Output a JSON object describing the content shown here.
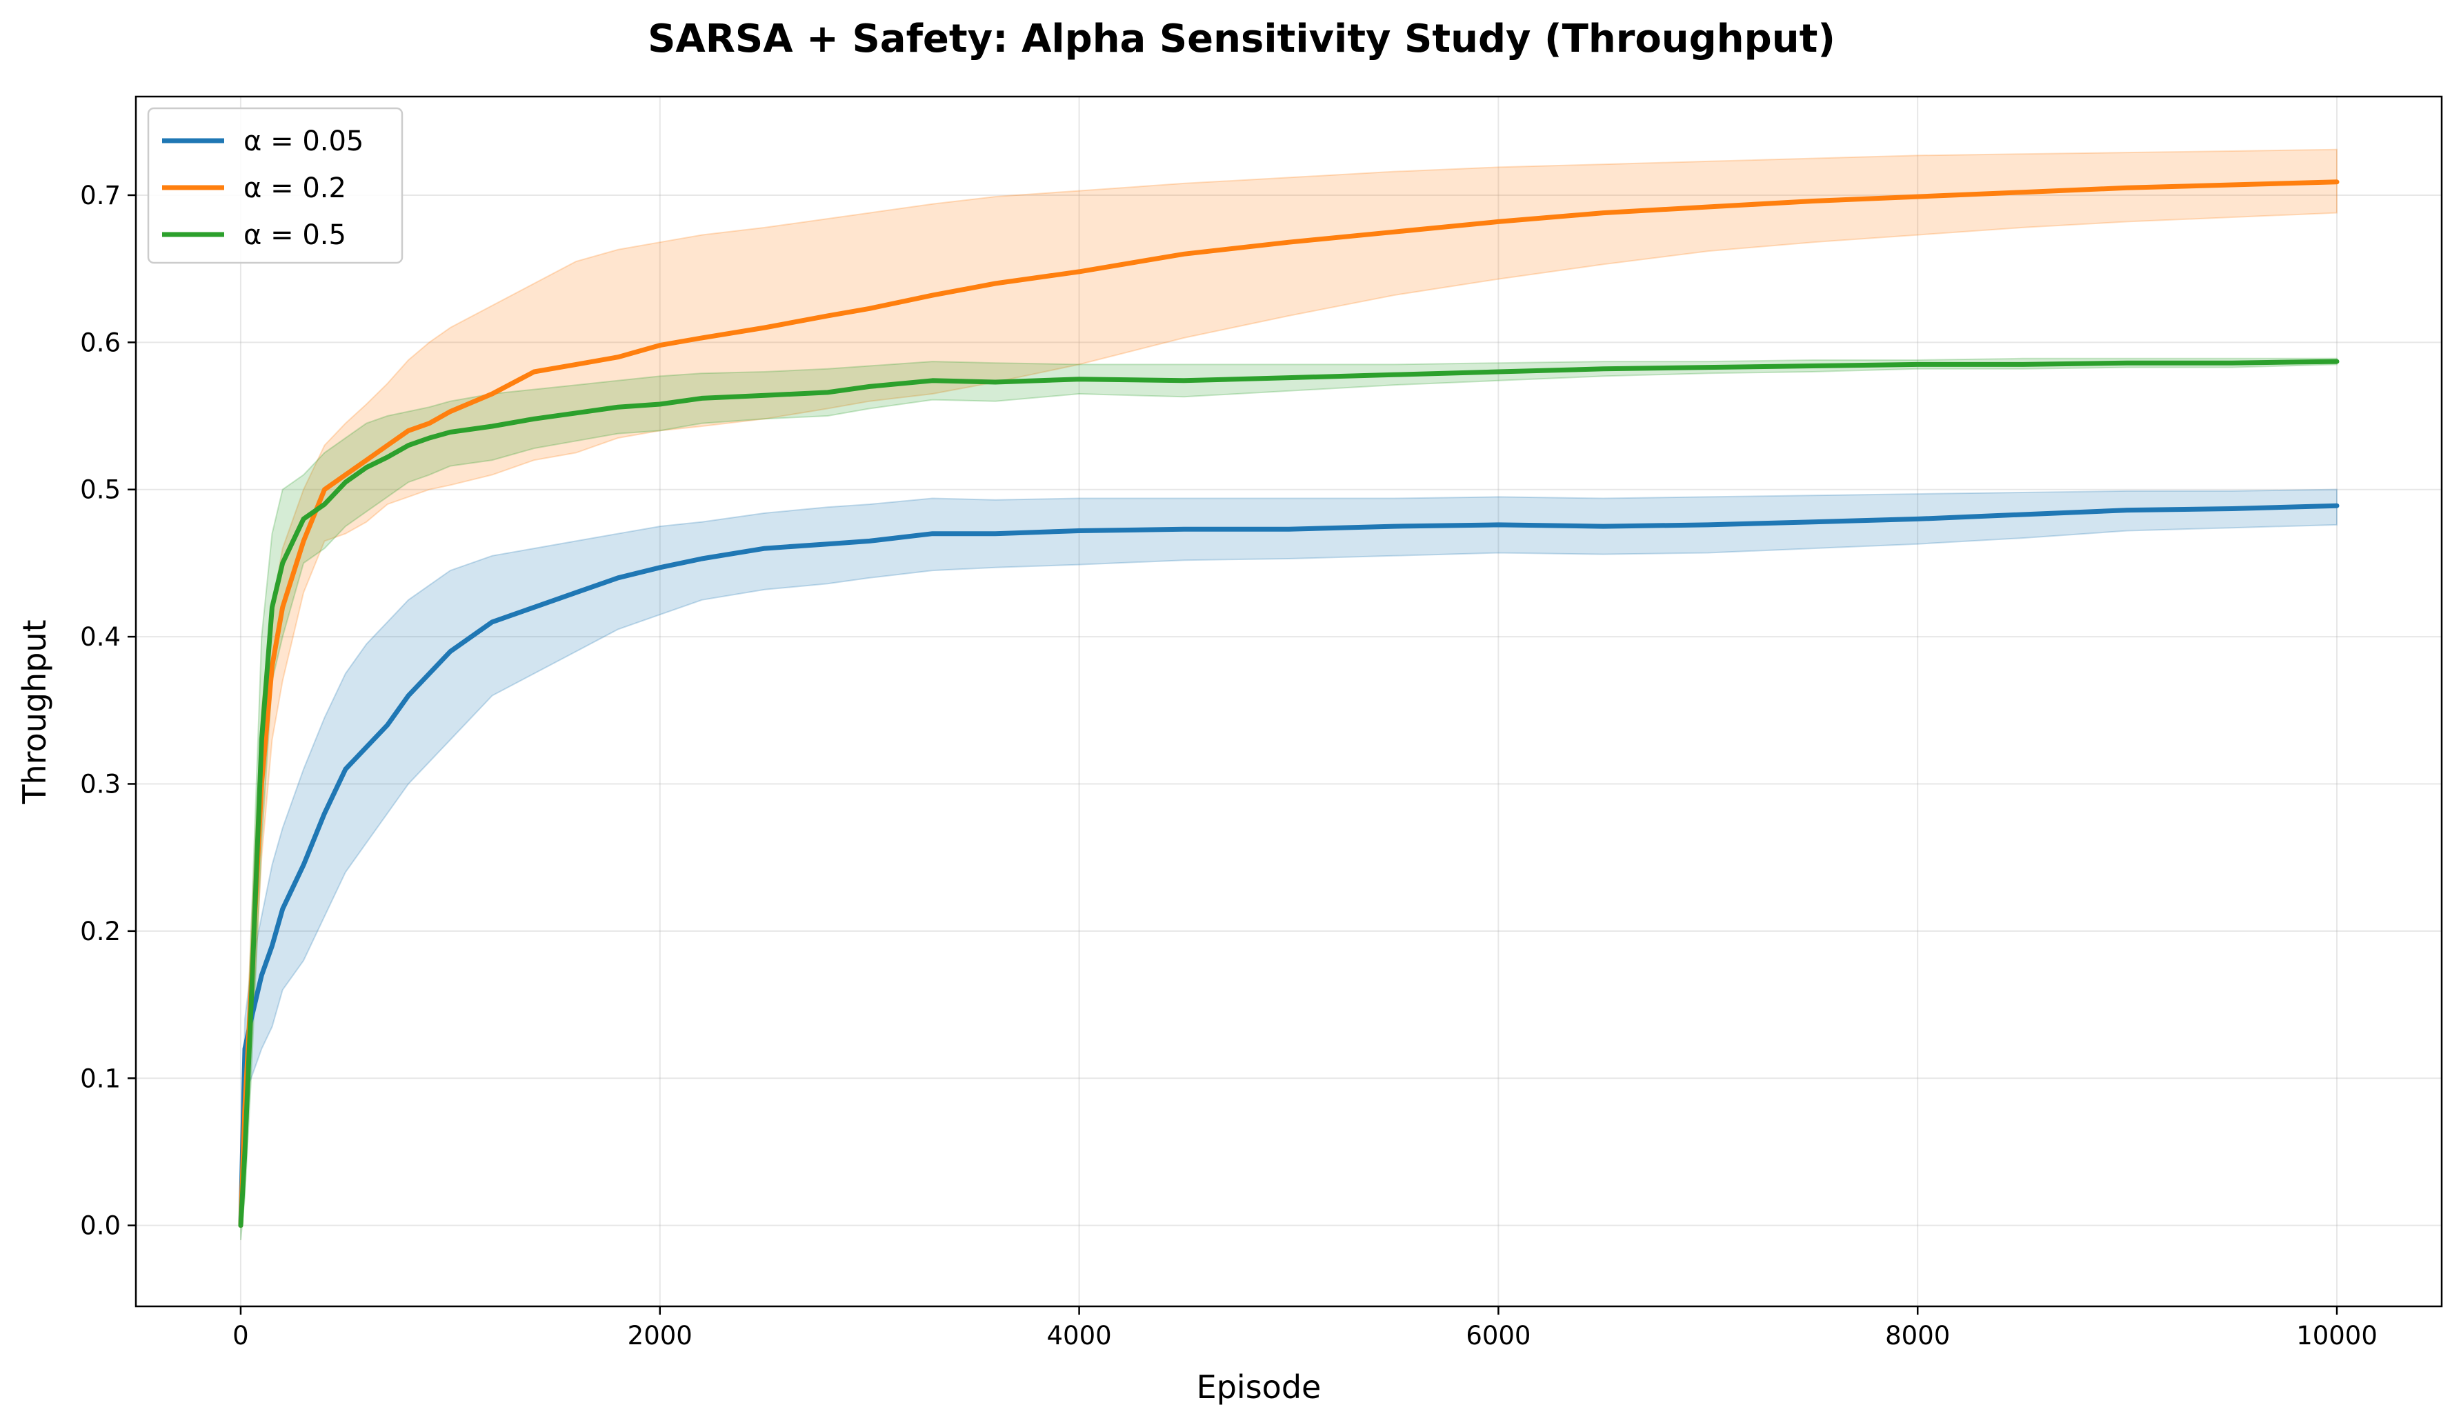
{
  "chart_data": {
    "type": "line",
    "title": "SARSA + Safety: Alpha Sensitivity Study (Throughput)",
    "xlabel": "Episode",
    "ylabel": "Throughput",
    "xlim": [
      -500,
      10500
    ],
    "ylim": [
      -0.055,
      0.767
    ],
    "xticks": [
      0,
      2000,
      4000,
      6000,
      8000,
      10000
    ],
    "xtick_labels": [
      "0",
      "2000",
      "4000",
      "6000",
      "8000",
      "10000"
    ],
    "yticks": [
      0.0,
      0.1,
      0.2,
      0.3,
      0.4,
      0.5,
      0.6,
      0.7
    ],
    "ytick_labels": [
      "0.0",
      "0.1",
      "0.2",
      "0.3",
      "0.4",
      "0.5",
      "0.6",
      "0.7"
    ],
    "grid": true,
    "legend_position": "top-left",
    "series": [
      {
        "name": "α = 0.05",
        "color": "#1f77b4",
        "x": [
          0,
          20,
          50,
          100,
          150,
          200,
          300,
          400,
          500,
          600,
          700,
          800,
          900,
          1000,
          1200,
          1400,
          1600,
          1800,
          2000,
          2200,
          2500,
          2800,
          3000,
          3300,
          3600,
          4000,
          4500,
          5000,
          5500,
          6000,
          6500,
          7000,
          7500,
          8000,
          8500,
          9000,
          9500,
          10000
        ],
        "values": [
          0.0,
          0.12,
          0.14,
          0.17,
          0.19,
          0.215,
          0.245,
          0.28,
          0.31,
          0.325,
          0.34,
          0.36,
          0.375,
          0.39,
          0.41,
          0.42,
          0.43,
          0.44,
          0.447,
          0.453,
          0.46,
          0.463,
          0.465,
          0.47,
          0.47,
          0.472,
          0.473,
          0.473,
          0.475,
          0.476,
          0.475,
          0.476,
          0.478,
          0.48,
          0.483,
          0.486,
          0.487,
          0.489
        ],
        "upper": [
          0.0,
          0.14,
          0.175,
          0.21,
          0.245,
          0.27,
          0.31,
          0.345,
          0.375,
          0.395,
          0.41,
          0.425,
          0.435,
          0.445,
          0.455,
          0.46,
          0.465,
          0.47,
          0.475,
          0.478,
          0.484,
          0.488,
          0.49,
          0.494,
          0.493,
          0.494,
          0.494,
          0.494,
          0.494,
          0.495,
          0.494,
          0.495,
          0.496,
          0.497,
          0.498,
          0.499,
          0.499,
          0.5
        ],
        "lower": [
          0.0,
          0.09,
          0.1,
          0.12,
          0.135,
          0.16,
          0.18,
          0.21,
          0.24,
          0.26,
          0.28,
          0.3,
          0.315,
          0.33,
          0.36,
          0.375,
          0.39,
          0.405,
          0.415,
          0.425,
          0.432,
          0.436,
          0.44,
          0.445,
          0.447,
          0.449,
          0.452,
          0.453,
          0.455,
          0.457,
          0.456,
          0.457,
          0.46,
          0.463,
          0.467,
          0.472,
          0.474,
          0.476
        ]
      },
      {
        "name": "α = 0.2",
        "color": "#ff7f0e",
        "x": [
          0,
          20,
          50,
          100,
          150,
          200,
          300,
          400,
          500,
          600,
          700,
          800,
          900,
          1000,
          1200,
          1400,
          1600,
          1800,
          2000,
          2200,
          2500,
          2800,
          3000,
          3300,
          3600,
          4000,
          4500,
          5000,
          5500,
          6000,
          6500,
          7000,
          7500,
          8000,
          8500,
          9000,
          9500,
          10000
        ],
        "values": [
          0.0,
          0.08,
          0.16,
          0.3,
          0.38,
          0.42,
          0.465,
          0.5,
          0.51,
          0.52,
          0.53,
          0.54,
          0.545,
          0.553,
          0.565,
          0.58,
          0.585,
          0.59,
          0.598,
          0.603,
          0.61,
          0.618,
          0.623,
          0.632,
          0.64,
          0.648,
          0.66,
          0.668,
          0.675,
          0.682,
          0.688,
          0.692,
          0.696,
          0.699,
          0.702,
          0.705,
          0.707,
          0.709
        ],
        "upper": [
          0.0,
          0.1,
          0.2,
          0.35,
          0.42,
          0.46,
          0.5,
          0.53,
          0.545,
          0.558,
          0.572,
          0.588,
          0.6,
          0.61,
          0.625,
          0.64,
          0.655,
          0.663,
          0.668,
          0.673,
          0.678,
          0.684,
          0.688,
          0.694,
          0.699,
          0.703,
          0.708,
          0.712,
          0.716,
          0.719,
          0.721,
          0.723,
          0.725,
          0.727,
          0.728,
          0.729,
          0.73,
          0.731
        ],
        "lower": [
          0.0,
          0.06,
          0.12,
          0.25,
          0.33,
          0.37,
          0.43,
          0.465,
          0.47,
          0.478,
          0.49,
          0.495,
          0.5,
          0.503,
          0.51,
          0.52,
          0.525,
          0.535,
          0.54,
          0.543,
          0.548,
          0.555,
          0.56,
          0.565,
          0.573,
          0.585,
          0.603,
          0.618,
          0.632,
          0.643,
          0.653,
          0.662,
          0.668,
          0.673,
          0.678,
          0.682,
          0.685,
          0.688
        ]
      },
      {
        "name": "α = 0.5",
        "color": "#2ca02c",
        "x": [
          0,
          20,
          50,
          100,
          150,
          200,
          300,
          400,
          500,
          600,
          700,
          800,
          900,
          1000,
          1200,
          1400,
          1600,
          1800,
          2000,
          2200,
          2500,
          2800,
          3000,
          3300,
          3600,
          4000,
          4500,
          5000,
          5500,
          6000,
          6500,
          7000,
          7500,
          8000,
          8500,
          9000,
          9500,
          10000
        ],
        "values": [
          0.0,
          0.05,
          0.15,
          0.33,
          0.42,
          0.45,
          0.48,
          0.49,
          0.505,
          0.515,
          0.522,
          0.53,
          0.535,
          0.539,
          0.543,
          0.548,
          0.552,
          0.556,
          0.558,
          0.562,
          0.564,
          0.566,
          0.57,
          0.574,
          0.573,
          0.575,
          0.574,
          0.576,
          0.578,
          0.58,
          0.582,
          0.583,
          0.584,
          0.585,
          0.585,
          0.586,
          0.586,
          0.587
        ],
        "upper": [
          0.01,
          0.08,
          0.2,
          0.4,
          0.47,
          0.5,
          0.51,
          0.525,
          0.535,
          0.545,
          0.55,
          0.553,
          0.556,
          0.56,
          0.565,
          0.568,
          0.571,
          0.574,
          0.577,
          0.579,
          0.58,
          0.582,
          0.584,
          0.587,
          0.586,
          0.585,
          0.585,
          0.585,
          0.585,
          0.586,
          0.587,
          0.587,
          0.588,
          0.588,
          0.589,
          0.589,
          0.589,
          0.589
        ],
        "lower": [
          -0.01,
          0.02,
          0.1,
          0.26,
          0.37,
          0.4,
          0.45,
          0.46,
          0.475,
          0.485,
          0.495,
          0.505,
          0.51,
          0.516,
          0.52,
          0.528,
          0.533,
          0.538,
          0.54,
          0.545,
          0.548,
          0.55,
          0.555,
          0.561,
          0.56,
          0.565,
          0.563,
          0.567,
          0.571,
          0.574,
          0.577,
          0.579,
          0.58,
          0.582,
          0.582,
          0.583,
          0.583,
          0.585
        ]
      }
    ]
  }
}
